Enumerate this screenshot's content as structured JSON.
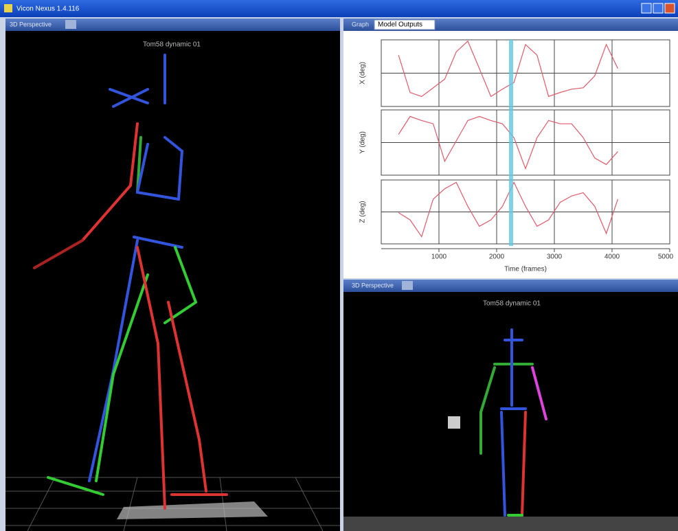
{
  "window": {
    "title": "Vicon Nexus 1.4.116"
  },
  "left_panel": {
    "header": "3D Perspective",
    "trial": "Tom58 dynamic 01"
  },
  "graph_panel": {
    "header": "Graph",
    "dropdown": "Model Outputs"
  },
  "graph": {
    "xlabel": "Time (frames)",
    "xlim": [
      0,
      5000
    ],
    "xticks": [
      1000,
      2000,
      3000,
      4000,
      5000
    ],
    "cursor_frame": 2250,
    "x": [
      300,
      500,
      700,
      900,
      1100,
      1300,
      1500,
      1700,
      1900,
      2100,
      2300,
      2500,
      2700,
      2900,
      3100,
      3300,
      3500,
      3700,
      3900,
      4100
    ],
    "color": "#e05a6a",
    "subplots": [
      {
        "ylabel": "X (deg)",
        "ylim": [
          -40,
          60
        ],
        "values": [
          37,
          -19,
          -25,
          -12,
          1,
          42,
          58,
          17,
          -25,
          -14,
          -4,
          53,
          37,
          -25,
          -19,
          -14,
          -12,
          6,
          53,
          17
        ]
      },
      {
        "ylabel": "Y (deg)",
        "ylim": [
          -40,
          40
        ],
        "values": [
          10,
          32,
          27,
          23,
          -23,
          2,
          27,
          32,
          27,
          23,
          6,
          -32,
          6,
          27,
          23,
          23,
          6,
          -19,
          -27,
          -11
        ]
      },
      {
        "ylabel": "Z (deg)",
        "ylim": [
          -40,
          40
        ],
        "values": [
          -1,
          -10,
          -31,
          16,
          29,
          37,
          7,
          -18,
          -10,
          7,
          37,
          7,
          -18,
          -10,
          12,
          20,
          24,
          7,
          -27,
          16
        ]
      }
    ]
  },
  "right_panel": {
    "header": "3D Perspective",
    "trial": "Tom58 dynamic 01"
  }
}
